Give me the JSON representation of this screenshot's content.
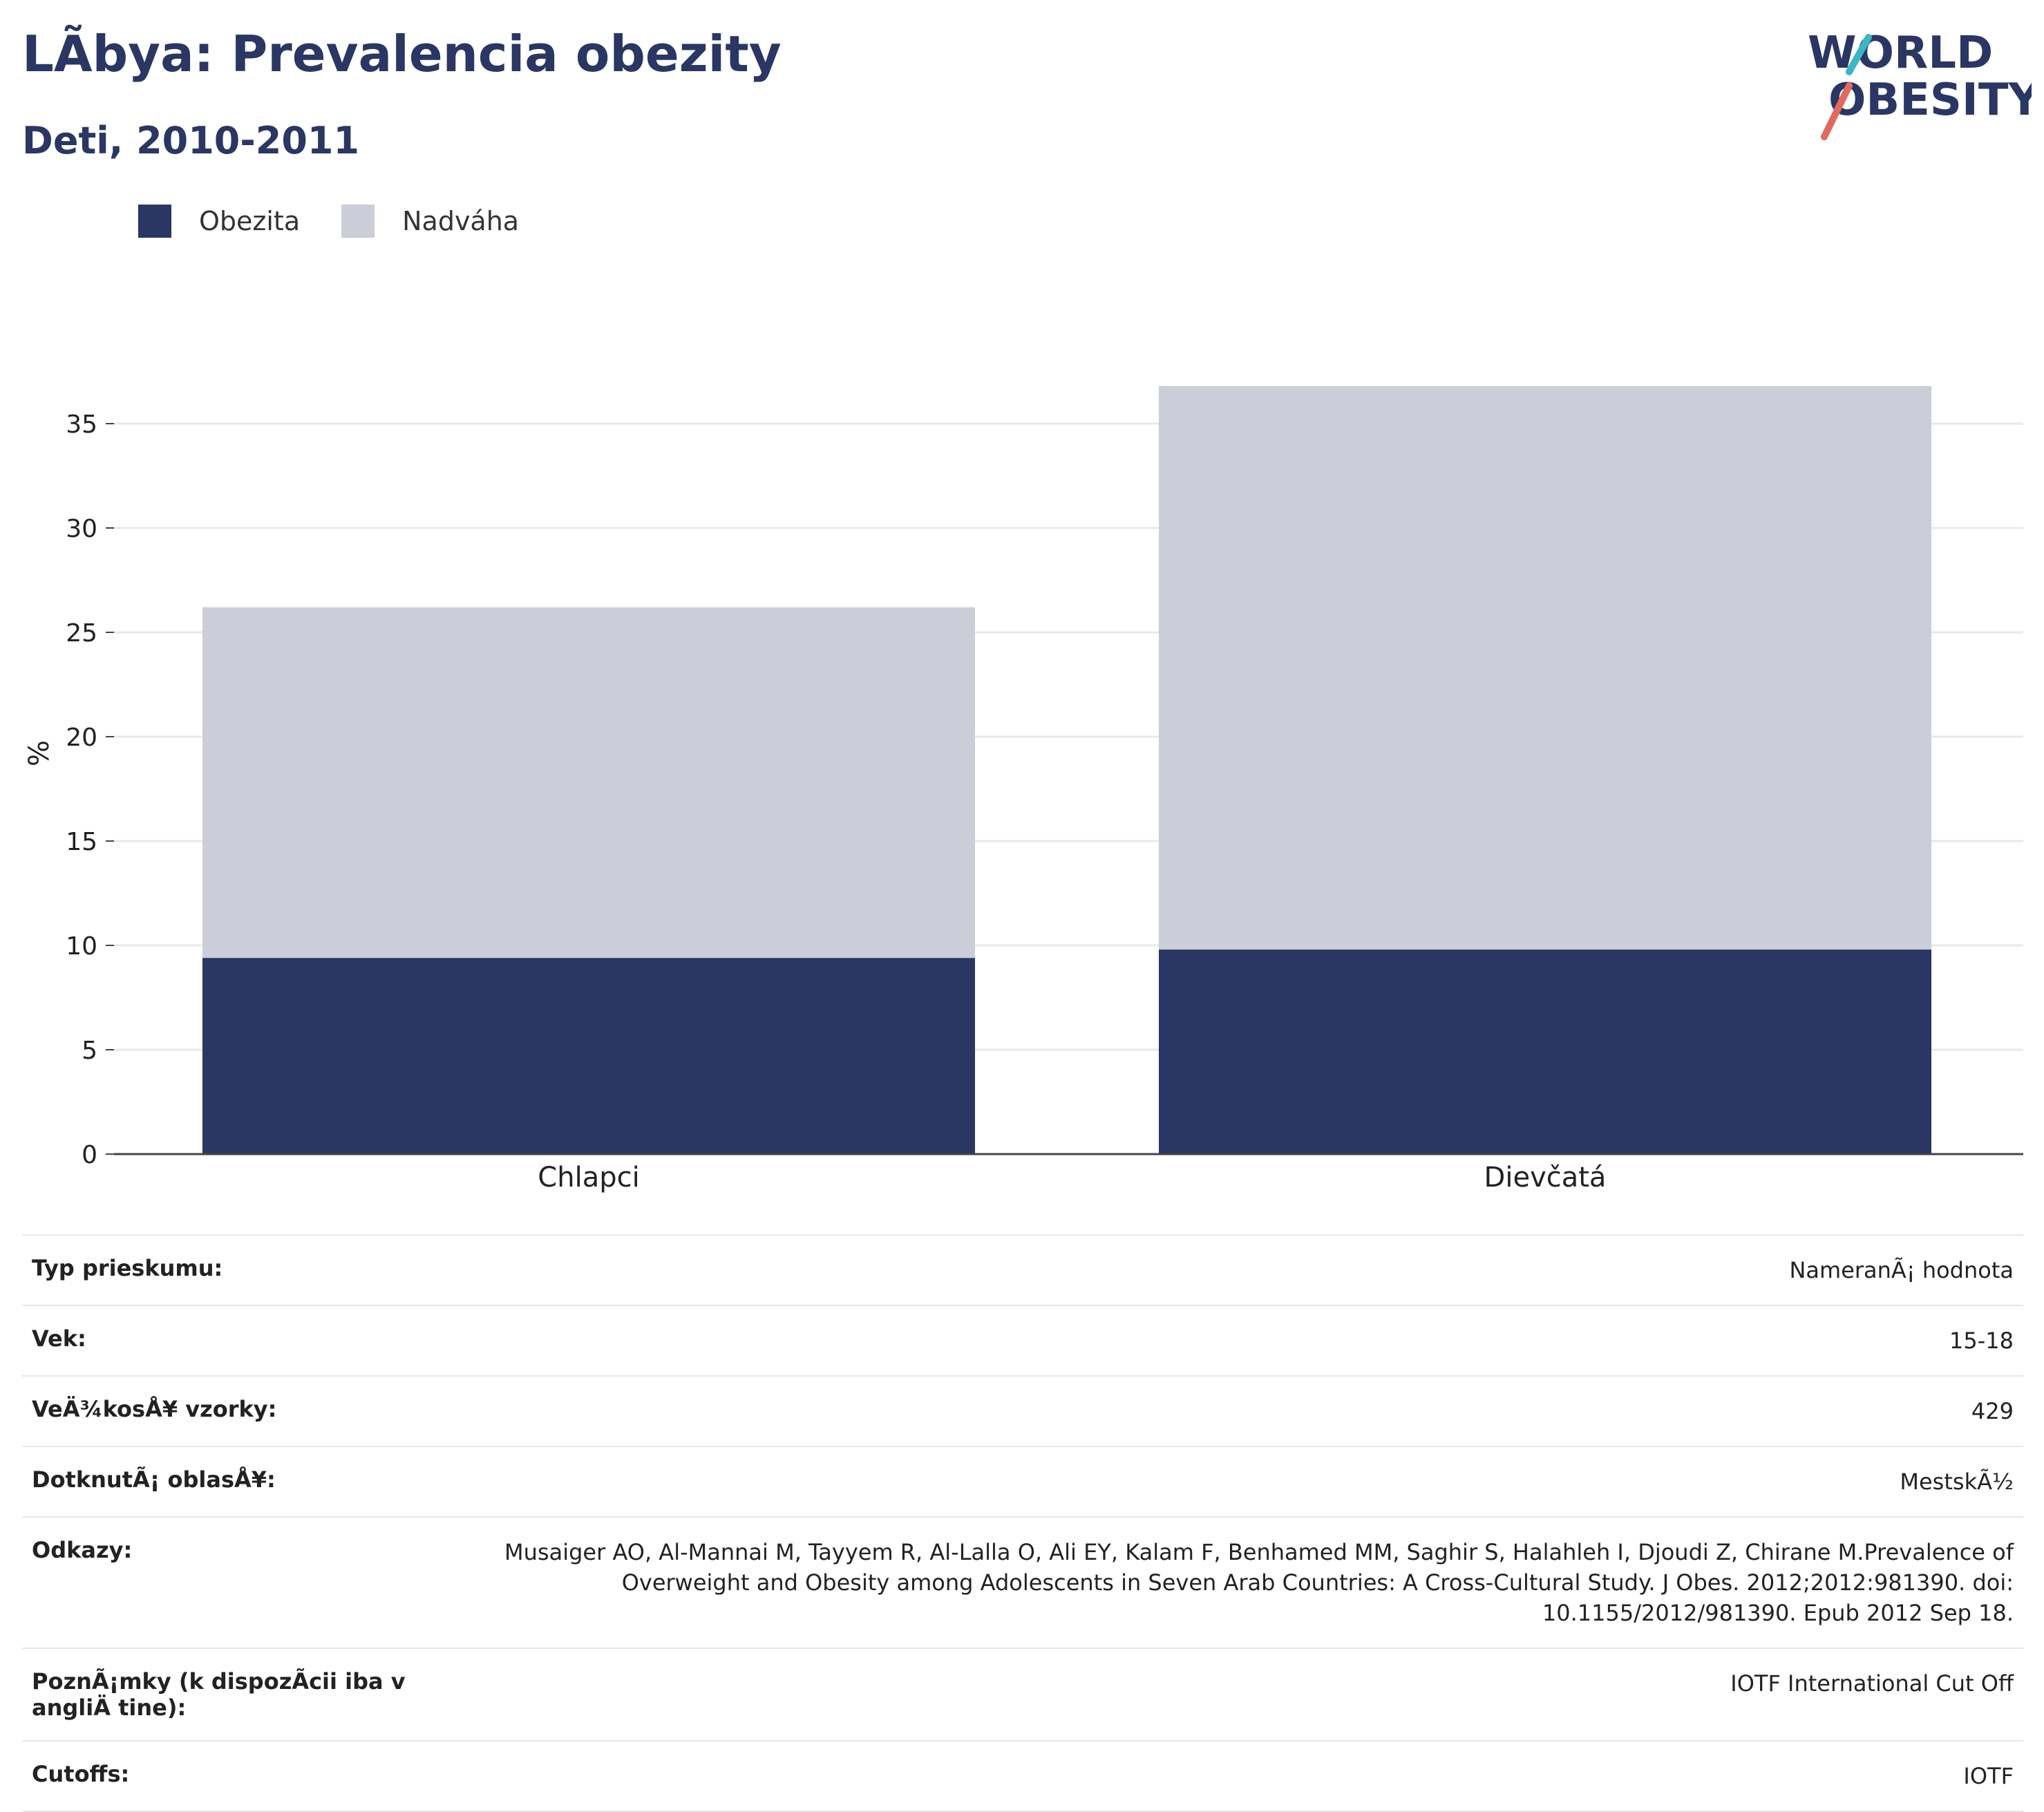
{
  "header": {
    "title": "LÃbya: Prevalencia obezity",
    "subtitle": "Deti, 2010-2011"
  },
  "logo": {
    "line1": "WORLD",
    "line2": "OBESITY"
  },
  "colors": {
    "obesity": "#2a3663",
    "overweight": "#cbcdd8",
    "text": "#2a3663"
  },
  "chart_data": {
    "type": "bar",
    "stacked": true,
    "categories": [
      "Chlapci",
      "Dievčatá"
    ],
    "series": [
      {
        "name": "Obezita",
        "values": [
          9.4,
          9.8
        ]
      },
      {
        "name": "Nadváha",
        "values": [
          16.8,
          27.0
        ]
      }
    ],
    "ylabel": "%",
    "ylim": [
      0,
      37
    ],
    "yticks": [
      0,
      5,
      10,
      15,
      20,
      25,
      30,
      35
    ],
    "grid": true,
    "legend_position": "top-left"
  },
  "details": [
    {
      "label": "Typ prieskumu:",
      "value": "NameranÃ¡ hodnota"
    },
    {
      "label": "Vek:",
      "value": "15-18"
    },
    {
      "label": "VeÄ¾kosÅ¥ vzorky:",
      "value": "429"
    },
    {
      "label": "DotknutÃ¡ oblasÅ¥:",
      "value": "MestskÃ½"
    },
    {
      "label": "Odkazy:",
      "value": "Musaiger AO, Al-Mannai M, Tayyem R, Al-Lalla O, Ali EY, Kalam F, Benhamed MM, Saghir S, Halahleh I, Djoudi Z, Chirane M.Prevalence of Overweight and Obesity among Adolescents in Seven Arab Countries: A Cross-Cultural Study. J Obes. 2012;2012:981390. doi: 10.1155/2012/981390. Epub 2012 Sep 18."
    },
    {
      "label": "PoznÃ¡mky (k dispozÃcii iba v angliÄ tine):",
      "value": "IOTF International Cut Off"
    },
    {
      "label": "Cutoffs:",
      "value": "IOTF"
    }
  ]
}
